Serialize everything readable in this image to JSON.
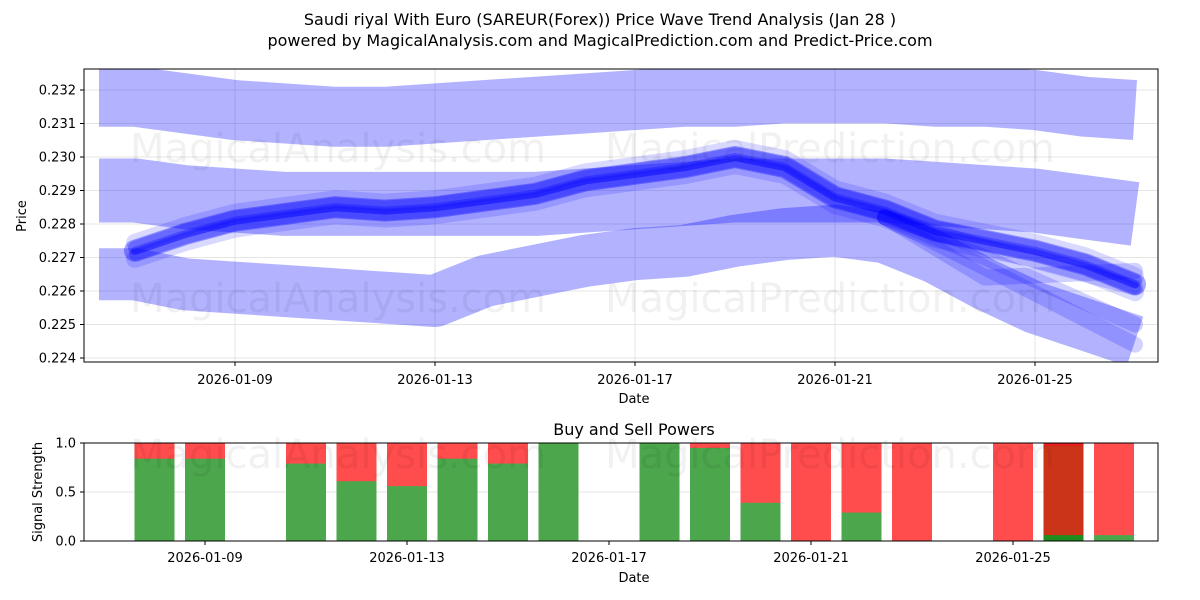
{
  "header": {
    "title": "Saudi riyal With Euro (SAREUR(Forex)) Price Wave Trend Analysis (Jan 28 )",
    "subtitle": "powered by MagicalAnalysis.com and MagicalPrediction.com and Predict-Price.com"
  },
  "watermarks": [
    "MagicalAnalysis.com",
    "MagicalPrediction.com"
  ],
  "colors": {
    "wave": "#0000ff",
    "buy": "#4ca64c",
    "sell": "#ff4c4c",
    "sell_dark": "#cc3419",
    "buy_dark": "#1e8c1e",
    "grid": "#dddddd"
  },
  "chart_data": [
    {
      "type": "area",
      "title": "Saudi riyal With Euro (SAREUR(Forex)) Price Wave Trend Analysis (Jan 28 )",
      "xlabel": "Date",
      "ylabel": "Price",
      "ylim": [
        0.2239,
        0.2326
      ],
      "yticks": [
        "0.224",
        "0.225",
        "0.226",
        "0.227",
        "0.228",
        "0.229",
        "0.230",
        "0.231",
        "0.232"
      ],
      "xticks": [
        "2026-01-09",
        "2026-01-13",
        "2026-01-17",
        "2026-01-21",
        "2026-01-25"
      ],
      "grid": true,
      "x": [
        "2026-01-07",
        "2026-01-08",
        "2026-01-09",
        "2026-01-10",
        "2026-01-11",
        "2026-01-12",
        "2026-01-13",
        "2026-01-14",
        "2026-01-15",
        "2026-01-16",
        "2026-01-17",
        "2026-01-18",
        "2026-01-19",
        "2026-01-20",
        "2026-01-21",
        "2026-01-22",
        "2026-01-23",
        "2026-01-24",
        "2026-01-25",
        "2026-01-26",
        "2026-01-27"
      ],
      "series": [
        {
          "name": "upper wave band",
          "values": [
            0.2318,
            0.2316,
            0.2314,
            0.2313,
            0.2312,
            0.2312,
            0.2313,
            0.2314,
            0.2315,
            0.2316,
            0.2317,
            0.2318,
            0.2318,
            0.2319,
            0.2319,
            0.2319,
            0.2318,
            0.2318,
            0.2317,
            0.2315,
            0.2314
          ]
        },
        {
          "name": "middle wave band",
          "values": [
            0.229,
            0.2288,
            0.2287,
            0.2286,
            0.2286,
            0.2286,
            0.2286,
            0.2286,
            0.2286,
            0.2287,
            0.2288,
            0.2289,
            0.229,
            0.229,
            0.229,
            0.229,
            0.2289,
            0.2288,
            0.2287,
            0.2285,
            0.2283
          ]
        },
        {
          "name": "lower wave band",
          "values": [
            0.2265,
            0.2262,
            0.2261,
            0.226,
            0.2259,
            0.2258,
            0.2257,
            0.2263,
            0.2266,
            0.2269,
            0.2271,
            0.2272,
            0.2275,
            0.2277,
            0.2278,
            0.2276,
            0.227,
            0.2262,
            0.2255,
            0.225,
            0.2245
          ]
        },
        {
          "name": "price trend (core)",
          "values": [
            0.2272,
            0.2277,
            0.2281,
            0.2283,
            0.2285,
            0.2284,
            0.2285,
            0.2287,
            0.2289,
            0.2293,
            0.2295,
            0.2297,
            0.23,
            0.2297,
            0.2288,
            0.2284,
            0.2278,
            0.2275,
            0.2272,
            0.2268,
            0.2262
          ]
        }
      ]
    },
    {
      "type": "bar",
      "title": "Buy and Sell Powers",
      "xlabel": "Date",
      "ylabel": "Signal Strength",
      "ylim": [
        0,
        1
      ],
      "yticks": [
        "0.0",
        "0.5",
        "1.0"
      ],
      "xticks": [
        "2026-01-09",
        "2026-01-13",
        "2026-01-17",
        "2026-01-21",
        "2026-01-25"
      ],
      "categories": [
        "2026-01-08",
        "2026-01-09",
        "2026-01-11",
        "2026-01-12",
        "2026-01-13",
        "2026-01-14",
        "2026-01-15",
        "2026-01-16",
        "2026-01-18",
        "2026-01-19",
        "2026-01-20",
        "2026-01-21",
        "2026-01-22",
        "2026-01-23",
        "2026-01-25",
        "2026-01-26",
        "2026-01-27"
      ],
      "series": [
        {
          "name": "Buy",
          "values": [
            0.84,
            0.84,
            0.79,
            0.61,
            0.56,
            0.84,
            0.79,
            1.0,
            1.0,
            0.95,
            0.39,
            0.0,
            0.29,
            0.0,
            0.0,
            0.06,
            0.06
          ]
        },
        {
          "name": "Sell",
          "values": [
            0.16,
            0.16,
            0.21,
            0.39,
            0.44,
            0.16,
            0.21,
            0.0,
            0.0,
            0.05,
            0.61,
            1.0,
            0.71,
            1.0,
            1.0,
            0.94,
            0.94
          ]
        }
      ]
    }
  ]
}
